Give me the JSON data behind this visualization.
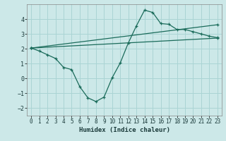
{
  "xlabel": "Humidex (Indice chaleur)",
  "bg_color": "#cce8e8",
  "line_color": "#1a6b5a",
  "grid_color": "#aad4d4",
  "xlim": [
    -0.5,
    23.5
  ],
  "ylim": [
    -2.5,
    5.0
  ],
  "yticks": [
    -2,
    -1,
    0,
    1,
    2,
    3,
    4
  ],
  "xticks": [
    0,
    1,
    2,
    3,
    4,
    5,
    6,
    7,
    8,
    9,
    10,
    11,
    12,
    13,
    14,
    15,
    16,
    17,
    18,
    19,
    20,
    21,
    22,
    23
  ],
  "series": [
    {
      "x": [
        0,
        1,
        2,
        3,
        4,
        5,
        6,
        7,
        8,
        9,
        10,
        11,
        12,
        13,
        14,
        15,
        16,
        17,
        18,
        19,
        20,
        21,
        22,
        23
      ],
      "y": [
        2.05,
        1.85,
        1.6,
        1.35,
        0.75,
        0.6,
        -0.55,
        -1.3,
        -1.55,
        -1.25,
        0.05,
        1.05,
        2.4,
        3.55,
        4.6,
        4.45,
        3.7,
        3.65,
        3.3,
        3.3,
        3.15,
        3.0,
        2.85,
        2.75
      ]
    },
    {
      "x": [
        0,
        23
      ],
      "y": [
        2.05,
        2.72
      ]
    },
    {
      "x": [
        0,
        23
      ],
      "y": [
        2.05,
        3.62
      ]
    }
  ]
}
